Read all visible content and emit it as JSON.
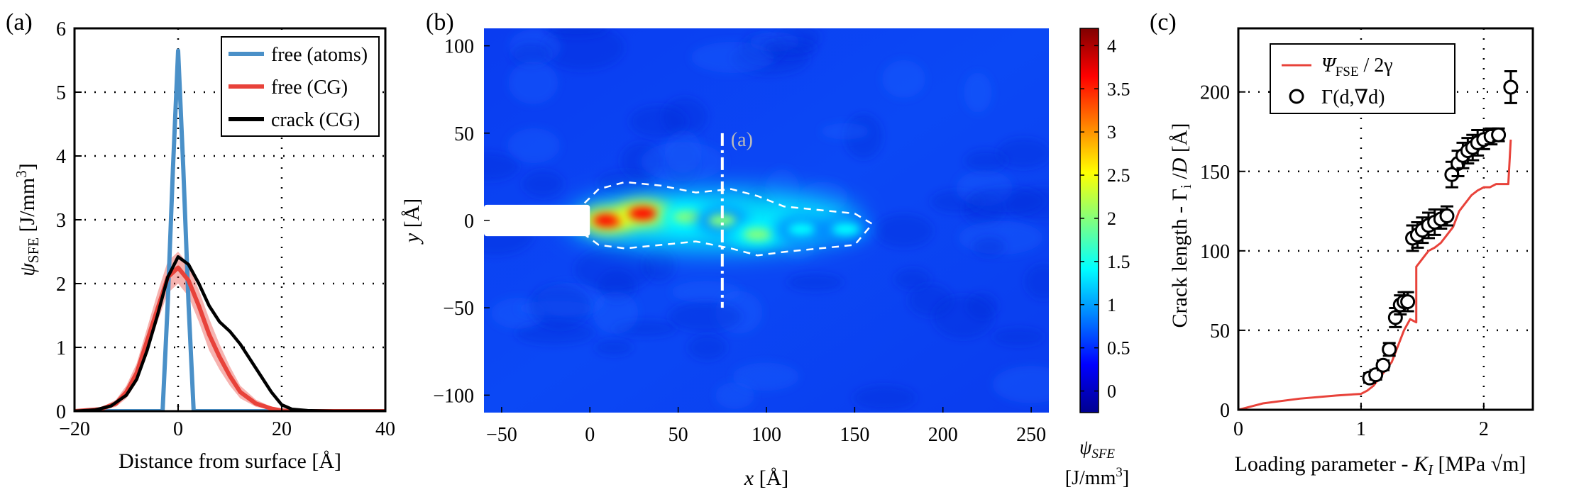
{
  "chart_data": [
    {
      "panel_label": "(a)",
      "type": "line",
      "xlabel": "Distance from surface [Å]",
      "ylabel_main": "ψ",
      "ylabel_sub": "SFE",
      "ylabel_unit": " [J/mm",
      "ylabel_sup": "3",
      "ylabel_close": "]",
      "xlim": [
        -20,
        40
      ],
      "ylim": [
        0,
        6
      ],
      "xticks": [
        -20,
        0,
        20,
        40
      ],
      "yticks": [
        0,
        1,
        2,
        3,
        4,
        5,
        6
      ],
      "grid": "dotted",
      "legend_position": "top-right",
      "series": [
        {
          "name": "free (atoms)",
          "color": "#4a90c8",
          "x": [
            -20,
            -3,
            -2,
            -1,
            0,
            1,
            2,
            3,
            40
          ],
          "y": [
            0,
            0,
            1.7,
            3.8,
            5.65,
            3.8,
            1.7,
            0,
            0
          ]
        },
        {
          "name": "free (CG)",
          "color": "#e8423a",
          "x": [
            -20,
            -15,
            -12,
            -10,
            -8,
            -6,
            -4,
            -2,
            0,
            2,
            4,
            6,
            8,
            10,
            12,
            15,
            18,
            20,
            22,
            40
          ],
          "y": [
            0,
            0.03,
            0.12,
            0.3,
            0.6,
            1.1,
            1.6,
            2.1,
            2.25,
            2.05,
            1.65,
            1.2,
            0.85,
            0.55,
            0.3,
            0.12,
            0.04,
            0.01,
            0,
            0
          ],
          "band_upper": [
            0,
            0.05,
            0.18,
            0.4,
            0.75,
            1.3,
            1.85,
            2.35,
            2.5,
            2.3,
            1.9,
            1.45,
            1.05,
            0.7,
            0.4,
            0.18,
            0.07,
            0.02,
            0,
            0
          ],
          "band_lower": [
            0,
            0.01,
            0.07,
            0.2,
            0.45,
            0.9,
            1.4,
            1.85,
            2.0,
            1.8,
            1.4,
            0.95,
            0.65,
            0.4,
            0.2,
            0.07,
            0.02,
            0,
            0,
            0
          ]
        },
        {
          "name": "crack (CG)",
          "color": "#000000",
          "x": [
            -20,
            -16,
            -13,
            -10,
            -8,
            -6,
            -4,
            -2,
            0,
            2,
            4,
            6,
            8,
            10,
            12,
            14,
            16,
            18,
            20,
            22,
            25,
            30,
            40
          ],
          "y": [
            0,
            0.02,
            0.08,
            0.25,
            0.5,
            0.95,
            1.5,
            2.1,
            2.42,
            2.3,
            2.0,
            1.65,
            1.4,
            1.25,
            1.05,
            0.8,
            0.55,
            0.3,
            0.1,
            0.03,
            0.01,
            0,
            0
          ]
        }
      ]
    },
    {
      "panel_label": "(b)",
      "type": "heatmap",
      "xlabel_var": "x",
      "xlabel_unit": " [Å]",
      "ylabel_var": "y",
      "ylabel_unit": " [Å]",
      "xlim": [
        -60,
        260
      ],
      "ylim": [
        -110,
        110
      ],
      "xticks": [
        -50,
        0,
        50,
        100,
        150,
        200,
        250
      ],
      "yticks": [
        -100,
        -50,
        0,
        50,
        100
      ],
      "colorbar": {
        "label_var": "ψ",
        "label_sub": "SFE",
        "label_unit": "[J/mm",
        "label_sup": "3",
        "label_close": "]",
        "range": [
          -0.25,
          4.2
        ],
        "ticks": [
          0,
          0.5,
          1,
          1.5,
          2,
          2.5,
          3,
          3.5,
          4
        ],
        "colors": [
          "#00008f",
          "#0000ff",
          "#0080ff",
          "#00ffff",
          "#80ff80",
          "#ffff00",
          "#ff8000",
          "#ff0000",
          "#800000"
        ]
      },
      "crack_notch": {
        "x_start": -60,
        "x_end": 0,
        "y_half_width": 9
      },
      "annotation": "(a)",
      "annotation_line_x": 75,
      "annotation_line_y": [
        -50,
        50
      ],
      "hotspots": [
        {
          "x": 10,
          "y": 0,
          "value": 3.8
        },
        {
          "x": 30,
          "y": 4,
          "value": 3.6
        },
        {
          "x": 55,
          "y": 2,
          "value": 2.2
        },
        {
          "x": 75,
          "y": 0,
          "value": 1.7
        },
        {
          "x": 95,
          "y": -8,
          "value": 2.0
        },
        {
          "x": 120,
          "y": -5,
          "value": 1.5
        },
        {
          "x": 145,
          "y": -5,
          "value": 1.4
        }
      ]
    },
    {
      "panel_label": "(c)",
      "type": "scatter",
      "xlabel": "Loading parameter - ",
      "xlabel_var": "K",
      "xlabel_sub": "I",
      "xlabel_unit": " [MPa √m]",
      "ylabel": "Crack length - Γ",
      "ylabel_sub": "i",
      "ylabel_tail": " /",
      "ylabel_var": "D",
      "ylabel_unit": "  [Å]",
      "xlim": [
        0,
        2.4
      ],
      "ylim": [
        0,
        240
      ],
      "xticks": [
        0,
        1,
        2
      ],
      "yticks": [
        0,
        50,
        100,
        150,
        200
      ],
      "grid": "dotted",
      "legend_position": "top-left",
      "series": [
        {
          "name_main": "Ψ",
          "name_sub": "FSE",
          "name_tail": " / 2γ",
          "type": "line",
          "color": "#e8423a",
          "x": [
            0,
            0.2,
            0.5,
            0.8,
            1.0,
            1.05,
            1.1,
            1.15,
            1.2,
            1.25,
            1.3,
            1.35,
            1.4,
            1.45,
            1.45,
            1.5,
            1.55,
            1.6,
            1.65,
            1.7,
            1.75,
            1.8,
            1.85,
            1.9,
            1.95,
            2.0,
            2.05,
            2.1,
            2.2,
            2.22
          ],
          "y": [
            0,
            4,
            7,
            9,
            10,
            12,
            15,
            20,
            25,
            30,
            40,
            50,
            57,
            55,
            90,
            95,
            100,
            102,
            105,
            110,
            115,
            125,
            130,
            135,
            138,
            140,
            140,
            142,
            142,
            170
          ]
        },
        {
          "name_main": "Γ(d,∇d)",
          "type": "scatter",
          "color": "#000000",
          "x": [
            1.07,
            1.12,
            1.18,
            1.23,
            1.28,
            1.32,
            1.35,
            1.38,
            1.42,
            1.46,
            1.5,
            1.55,
            1.6,
            1.65,
            1.7,
            1.74,
            1.79,
            1.83,
            1.87,
            1.91,
            1.95,
            2.0,
            2.06,
            2.12,
            2.22
          ],
          "y": [
            20,
            22,
            28,
            38,
            58,
            66,
            68,
            68,
            108,
            110,
            113,
            116,
            118,
            120,
            122,
            148,
            155,
            160,
            163,
            165,
            168,
            170,
            172,
            173,
            203
          ],
          "err": [
            3,
            3,
            3,
            4,
            6,
            6,
            6,
            6,
            8,
            8,
            8,
            8,
            8,
            6,
            6,
            8,
            8,
            8,
            8,
            8,
            8,
            6,
            5,
            4,
            10
          ]
        }
      ]
    }
  ]
}
